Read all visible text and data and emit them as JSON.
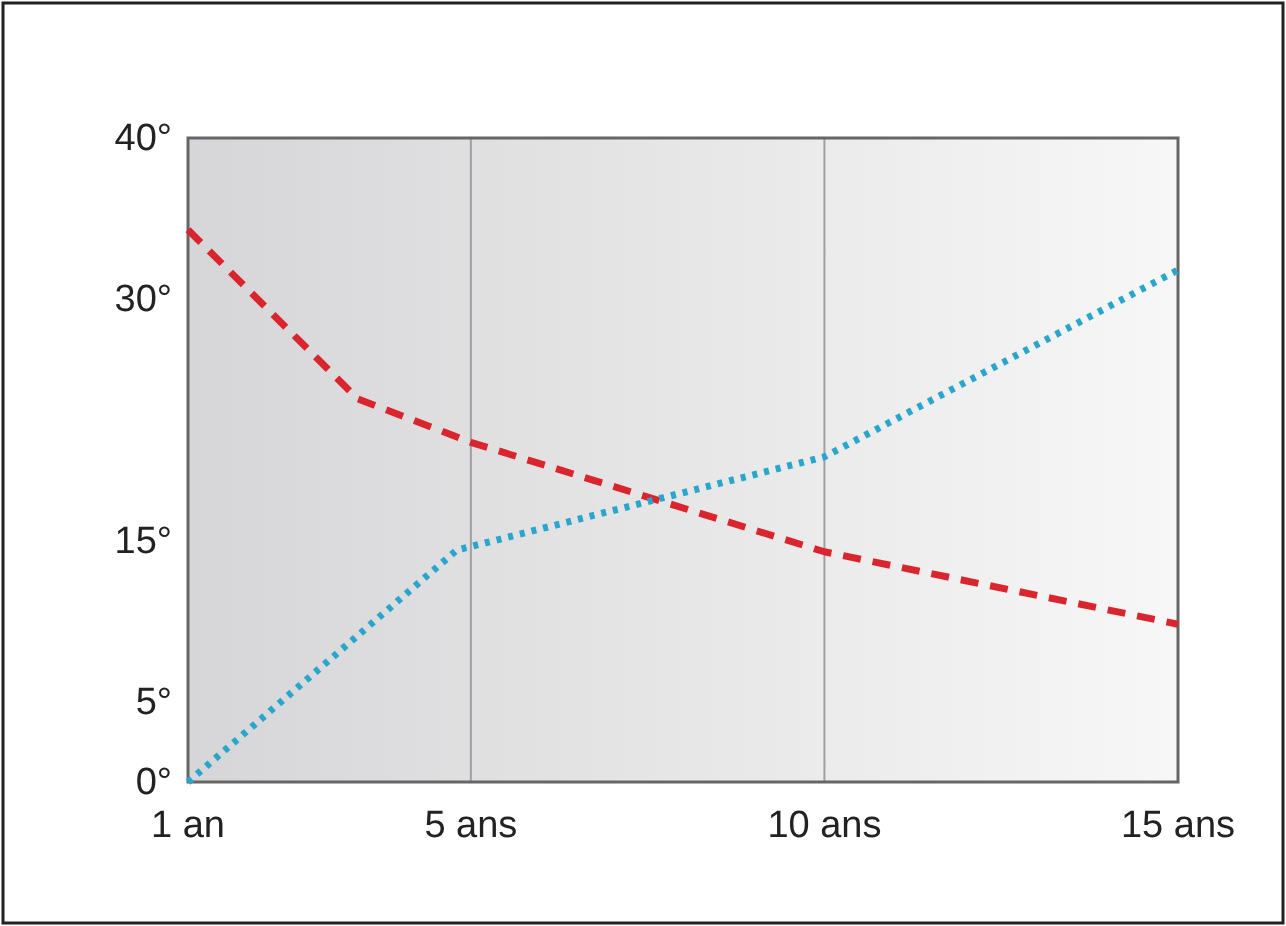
{
  "chart_data": {
    "type": "line",
    "xlim": [
      1,
      15
    ],
    "xticks": [
      {
        "value": 1,
        "label": "1 an"
      },
      {
        "value": 5,
        "label": "5 ans"
      },
      {
        "value": 10,
        "label": "10 ans"
      },
      {
        "value": 15,
        "label": "15 ans"
      }
    ],
    "ylim": [
      0,
      40
    ],
    "yticks": [
      {
        "value": 0,
        "label": "0°"
      },
      {
        "value": 5,
        "label": "5°"
      },
      {
        "value": 15,
        "label": "15°"
      },
      {
        "value": 30,
        "label": "30°"
      },
      {
        "value": 40,
        "label": "40°"
      }
    ],
    "grid": "x",
    "marker": "none",
    "series": [
      {
        "color": "#d9262e",
        "line_style": "dashed",
        "x": [
          1,
          3.4,
          5,
          10,
          15
        ],
        "values": [
          34.3,
          23.8,
          21.1,
          14.3,
          9.8
        ]
      },
      {
        "color": "#2aa6cc",
        "line_style": "dotted",
        "x": [
          1,
          4.8,
          10,
          15
        ],
        "values": [
          0,
          14.4,
          20.2,
          31.8
        ]
      }
    ]
  }
}
